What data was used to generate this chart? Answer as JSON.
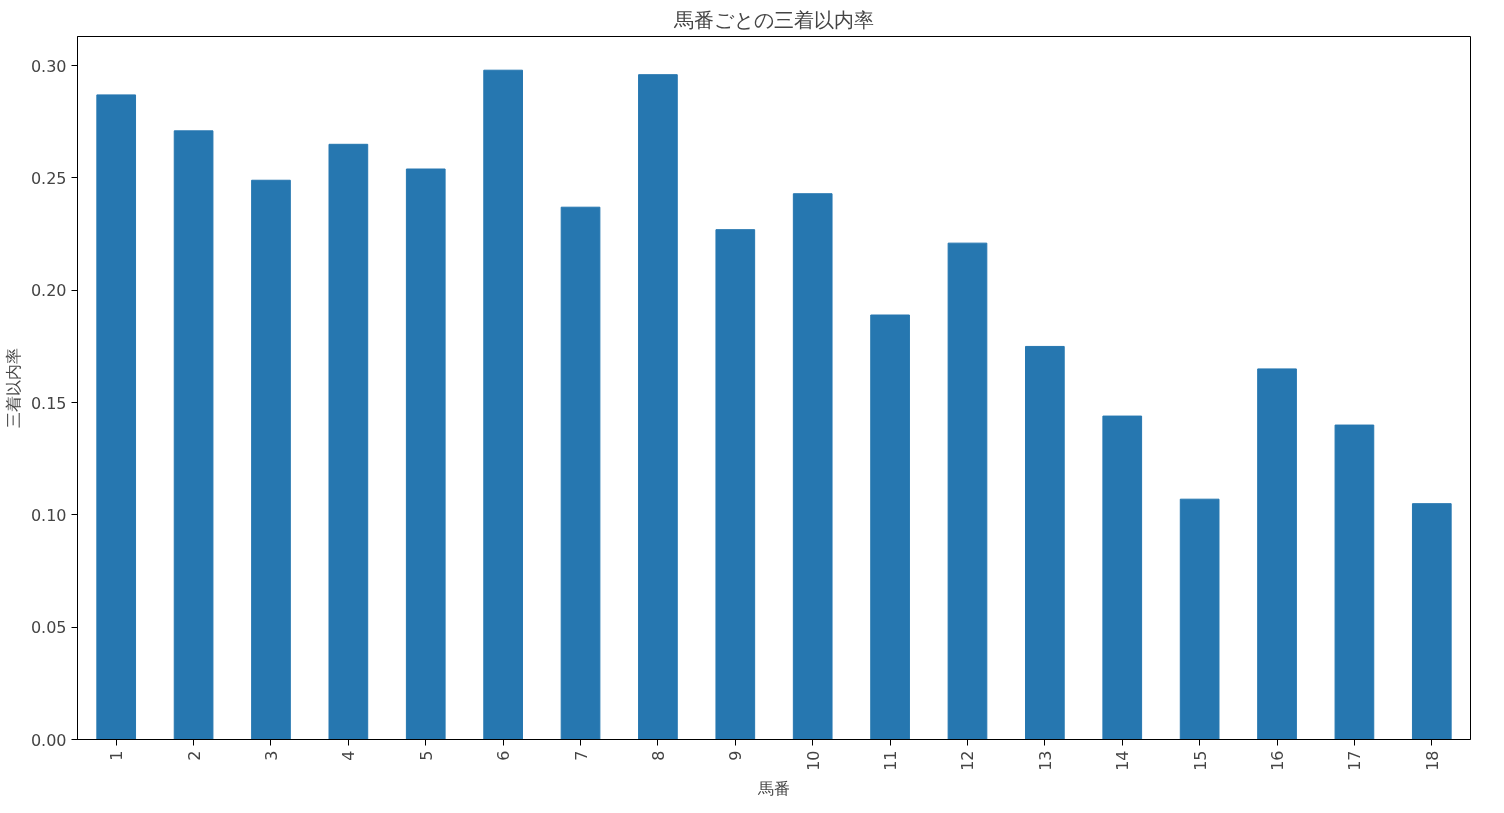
{
  "chart_data": {
    "type": "bar",
    "title": "馬番ごとの三着以内率",
    "xlabel": "馬番",
    "ylabel": "三着以内率",
    "categories": [
      "1",
      "2",
      "3",
      "4",
      "5",
      "6",
      "7",
      "8",
      "9",
      "10",
      "11",
      "12",
      "13",
      "14",
      "15",
      "16",
      "17",
      "18"
    ],
    "values": [
      0.287,
      0.271,
      0.249,
      0.265,
      0.254,
      0.298,
      0.237,
      0.296,
      0.227,
      0.243,
      0.189,
      0.221,
      0.175,
      0.144,
      0.107,
      0.165,
      0.14,
      0.105
    ],
    "color": "#2677b0",
    "ylim": [
      0,
      0.313
    ],
    "yticks": [
      {
        "value": 0,
        "label": "0.00"
      },
      {
        "value": 0.05,
        "label": "0.05"
      },
      {
        "value": 0.1,
        "label": "0.10"
      },
      {
        "value": 0.15,
        "label": "0.15"
      },
      {
        "value": 0.2,
        "label": "0.20"
      },
      {
        "value": 0.25,
        "label": "0.25"
      },
      {
        "value": 0.3,
        "label": "0.30"
      }
    ],
    "grid": false
  }
}
